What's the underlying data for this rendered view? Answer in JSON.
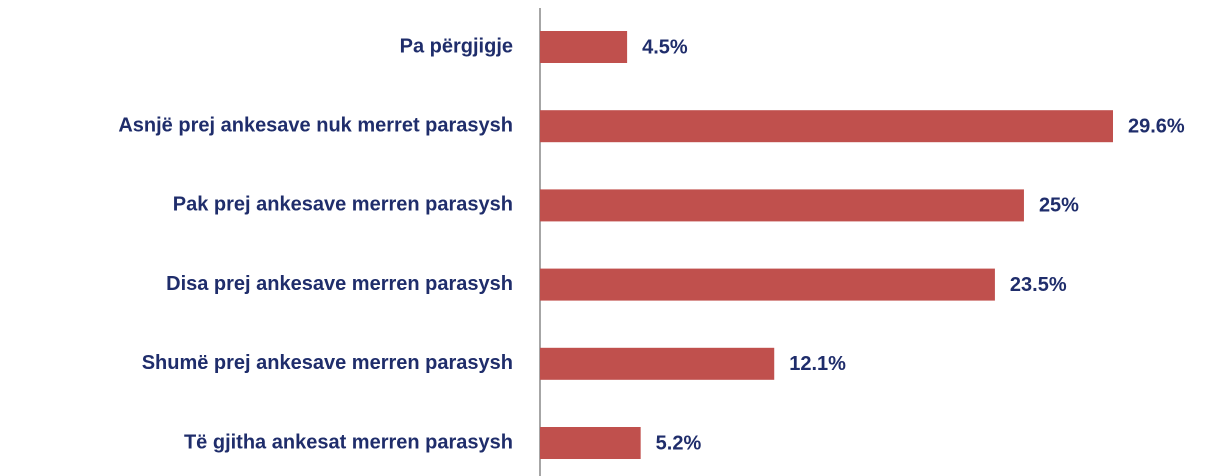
{
  "chart_data": {
    "type": "bar",
    "orientation": "horizontal",
    "categories": [
      "Pa përgjigje",
      "Asnjë prej ankesave nuk merret parasysh",
      "Pak prej ankesave merren parasysh",
      "Disa prej ankesave merren parasysh",
      "Shumë prej ankesave merren parasysh",
      "Të gjitha ankesat merren parasysh"
    ],
    "values": [
      4.5,
      29.6,
      25,
      23.5,
      12.1,
      5.2
    ],
    "value_labels": [
      "4.5%",
      "29.6%",
      "25%",
      "23.5%",
      "12.1%",
      "5.2%"
    ],
    "color": "#c0504d"
  }
}
